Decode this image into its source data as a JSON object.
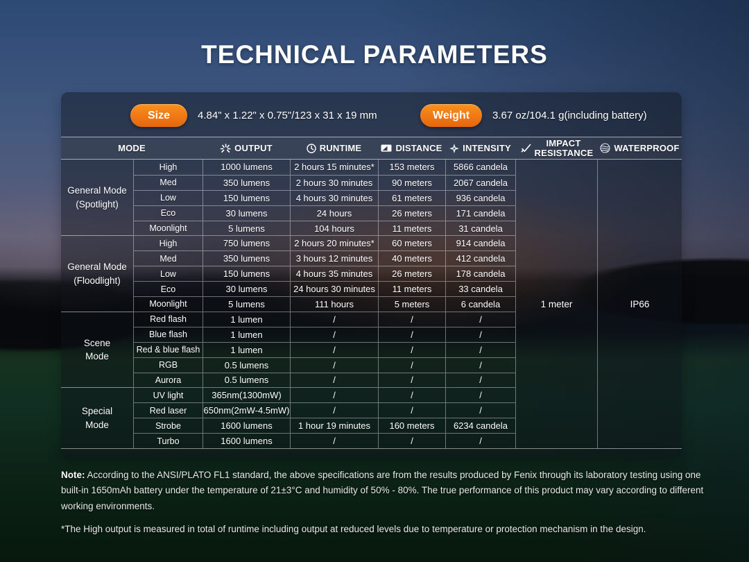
{
  "title": "TECHNICAL PARAMETERS",
  "specs": {
    "size_label": "Size",
    "size_value": "4.84\" x 1.22\" x 0.75\"/123 x 31 x 19 mm",
    "weight_label": "Weight",
    "weight_value": "3.67 oz/104.1 g(including battery)"
  },
  "table": {
    "headers": [
      {
        "label": "MODE",
        "icon": ""
      },
      {
        "label": "OUTPUT",
        "icon": "output-rays-icon"
      },
      {
        "label": "RUNTIME",
        "icon": "clock-icon"
      },
      {
        "label": "DISTANCE",
        "icon": "beam-distance-icon"
      },
      {
        "label": "INTENSITY",
        "icon": "sparkle-icon"
      },
      {
        "label": "IMPACT RESISTANCE",
        "icon": "checkmark-icon"
      },
      {
        "label": "WATERPROOF",
        "icon": "water-globe-icon"
      }
    ],
    "groups": [
      {
        "name": "General Mode\n(Spotlight)",
        "rows": [
          {
            "level": "High",
            "output": "1000 lumens",
            "runtime": "2 hours 15 minutes*",
            "distance": "153 meters",
            "intensity": "5866 candela"
          },
          {
            "level": "Med",
            "output": "350 lumens",
            "runtime": "2 hours 30 minutes",
            "distance": "90 meters",
            "intensity": "2067 candela"
          },
          {
            "level": "Low",
            "output": "150 lumens",
            "runtime": "4 hours 30 minutes",
            "distance": "61 meters",
            "intensity": "936 candela"
          },
          {
            "level": "Eco",
            "output": "30 lumens",
            "runtime": "24 hours",
            "distance": "26 meters",
            "intensity": "171 candela"
          },
          {
            "level": "Moonlight",
            "output": "5 lumens",
            "runtime": "104 hours",
            "distance": "11 meters",
            "intensity": "31 candela"
          }
        ]
      },
      {
        "name": "General Mode\n(Floodlight)",
        "rows": [
          {
            "level": "High",
            "output": "750 lumens",
            "runtime": "2 hours 20 minutes*",
            "distance": "60 meters",
            "intensity": "914 candela"
          },
          {
            "level": "Med",
            "output": "350 lumens",
            "runtime": "3 hours 12 minutes",
            "distance": "40 meters",
            "intensity": "412 candela"
          },
          {
            "level": "Low",
            "output": "150 lumens",
            "runtime": "4 hours 35 minutes",
            "distance": "26 meters",
            "intensity": "178 candela"
          },
          {
            "level": "Eco",
            "output": "30 lumens",
            "runtime": "24 hours 30 minutes",
            "distance": "11 meters",
            "intensity": "33 candela"
          },
          {
            "level": "Moonlight",
            "output": "5 lumens",
            "runtime": "111 hours",
            "distance": "5 meters",
            "intensity": "6 candela"
          }
        ]
      },
      {
        "name": "Scene\nMode",
        "rows": [
          {
            "level": "Red flash",
            "output": "1 lumen",
            "runtime": "/",
            "distance": "/",
            "intensity": "/"
          },
          {
            "level": "Blue flash",
            "output": "1 lumen",
            "runtime": "/",
            "distance": "/",
            "intensity": "/"
          },
          {
            "level": "Red & blue flash",
            "output": "1 lumen",
            "runtime": "/",
            "distance": "/",
            "intensity": "/"
          },
          {
            "level": "RGB",
            "output": "0.5 lumens",
            "runtime": "/",
            "distance": "/",
            "intensity": "/"
          },
          {
            "level": "Aurora",
            "output": "0.5 lumens",
            "runtime": "/",
            "distance": "/",
            "intensity": "/"
          }
        ]
      },
      {
        "name": "Special\nMode",
        "rows": [
          {
            "level": "UV light",
            "output": "365nm(1300mW)",
            "runtime": "/",
            "distance": "/",
            "intensity": "/"
          },
          {
            "level": "Red laser",
            "output": "650nm(2mW-4.5mW)",
            "runtime": "/",
            "distance": "/",
            "intensity": "/"
          },
          {
            "level": "Strobe",
            "output": "1600 lumens",
            "runtime": "1 hour 19 minutes",
            "distance": "160 meters",
            "intensity": "6234 candela"
          },
          {
            "level": "Turbo",
            "output": "1600 lumens",
            "runtime": "/",
            "distance": "/",
            "intensity": "/"
          }
        ]
      }
    ],
    "impact_resistance": "1 meter",
    "waterproof": "IP66"
  },
  "notes": {
    "label": "Note:",
    "body": " According to the ANSI/PLATO FL1 standard, the above specifications are from the results produced by Fenix through its laboratory testing using one built-in 1650mAh battery under the temperature of 21±3°C and humidity of 50% - 80%. The true performance of this product may vary according to different working environments.",
    "footnote": "*The High output is measured in total of runtime including output at reduced levels due to temperature or protection mechanism in the design."
  },
  "colors": {
    "accent_orange": "#ef7514",
    "table_line": "rgba(255,255,255,0.45)"
  }
}
